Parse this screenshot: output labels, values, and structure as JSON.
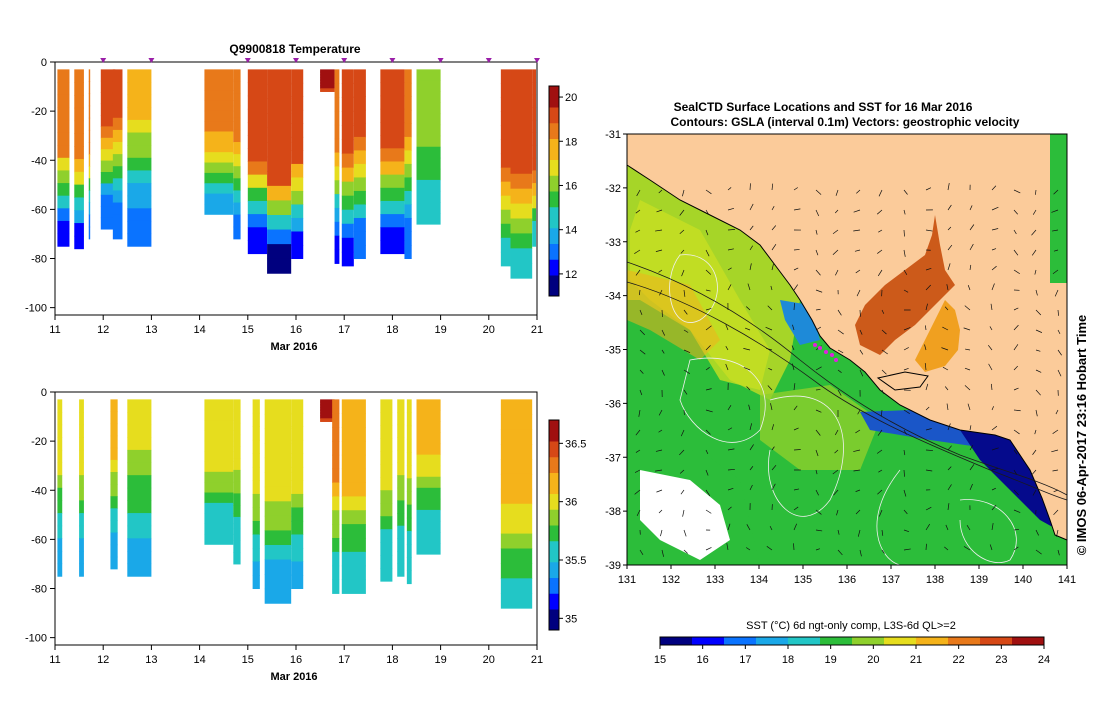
{
  "colors": {
    "land": "#fbcb9a",
    "no_data": "#ffffff",
    "profile_marker": "#9a1fa8",
    "contour": "#f0f0f0",
    "coastline": "#000000"
  },
  "chart_data": [
    {
      "type": "heatmap",
      "title": "Q9900818  Temperature",
      "xlabel": "Mar 2016",
      "x_ticks": [
        11,
        12,
        13,
        14,
        15,
        16,
        17,
        18,
        19,
        20,
        21
      ],
      "xlim": [
        11,
        21
      ],
      "y_ticks": [
        0,
        -20,
        -40,
        -60,
        -80,
        -100
      ],
      "ylim": [
        -103,
        0
      ],
      "colorbar": {
        "ticks": [
          12,
          14,
          16,
          18,
          20
        ],
        "range": [
          11,
          20.5
        ]
      },
      "profile_times": [
        12,
        13,
        15,
        16,
        17,
        18,
        19,
        20,
        21
      ],
      "profiles": [
        {
          "t0": 11.05,
          "t1": 11.3,
          "bottom": -75,
          "surface": 18.5,
          "mix": -35,
          "deep": 12.5
        },
        {
          "t0": 11.4,
          "t1": 11.6,
          "bottom": -76,
          "surface": 18.5,
          "mix": -38,
          "deep": 12.5
        },
        {
          "t0": 11.7,
          "t1": 11.73,
          "bottom": -72,
          "surface": 18.5,
          "mix": -35,
          "deep": 13
        },
        {
          "t0": 11.95,
          "t1": 12.25,
          "bottom": -68,
          "surface": 19,
          "mix": -25,
          "deep": 13
        },
        {
          "t0": 12.2,
          "t1": 12.4,
          "bottom": -72,
          "surface": 19,
          "mix": -22,
          "deep": 13
        },
        {
          "t0": 12.5,
          "t1": 13.0,
          "bottom": -75,
          "surface": 17.5,
          "mix": -20,
          "deep": 13
        },
        {
          "t0": 14.1,
          "t1": 14.7,
          "bottom": -62,
          "surface": 18.5,
          "mix": -28,
          "deep": 14
        },
        {
          "t0": 14.7,
          "t1": 14.85,
          "bottom": -72,
          "surface": 18.5,
          "mix": -30,
          "deep": 13
        },
        {
          "t0": 15.0,
          "t1": 15.4,
          "bottom": -78,
          "surface": 19,
          "mix": -40,
          "deep": 12
        },
        {
          "t0": 15.4,
          "t1": 15.9,
          "bottom": -86,
          "surface": 19,
          "mix": -50,
          "deep": 11.5
        },
        {
          "t0": 15.9,
          "t1": 16.15,
          "bottom": -80,
          "surface": 19,
          "mix": -40,
          "deep": 12.5
        },
        {
          "t0": 16.5,
          "t1": 16.8,
          "bottom": -12,
          "surface": 19.8,
          "mix": -10,
          "deep": 19.5
        },
        {
          "t0": 16.8,
          "t1": 16.9,
          "bottom": -82,
          "surface": 18.5,
          "mix": -35,
          "deep": 12.5
        },
        {
          "t0": 16.95,
          "t1": 17.2,
          "bottom": -83,
          "surface": 19,
          "mix": -38,
          "deep": 12.5
        },
        {
          "t0": 17.2,
          "t1": 17.45,
          "bottom": -80,
          "surface": 19,
          "mix": -30,
          "deep": 13
        },
        {
          "t0": 17.75,
          "t1": 18.25,
          "bottom": -78,
          "surface": 19,
          "mix": -35,
          "deep": 12.5
        },
        {
          "t0": 18.25,
          "t1": 18.4,
          "bottom": -80,
          "surface": 18.5,
          "mix": -30,
          "deep": 13
        },
        {
          "t0": 18.5,
          "t1": 19.0,
          "bottom": -66,
          "surface": 16.5,
          "mix": -22,
          "deep": 14.5
        },
        {
          "t0": 20.25,
          "t1": 20.45,
          "bottom": -83,
          "surface": 19,
          "mix": -40,
          "deep": 14.5
        },
        {
          "t0": 20.45,
          "t1": 20.9,
          "bottom": -88,
          "surface": 19,
          "mix": -45,
          "deep": 14.5
        },
        {
          "t0": 20.9,
          "t1": 20.98,
          "bottom": -75,
          "surface": 19,
          "mix": -45,
          "deep": 14.5
        }
      ]
    },
    {
      "type": "heatmap",
      "title": "",
      "xlabel": "Mar 2016",
      "x_ticks": [
        11,
        12,
        13,
        14,
        15,
        16,
        17,
        18,
        19,
        20,
        21
      ],
      "xlim": [
        11,
        21
      ],
      "y_ticks": [
        0,
        -20,
        -40,
        -60,
        -80,
        -100
      ],
      "ylim": [
        -103,
        0
      ],
      "colorbar": {
        "ticks": [
          35,
          35.5,
          36,
          36.5
        ],
        "range": [
          34.9,
          36.7
        ]
      },
      "profiles": [
        {
          "t0": 11.05,
          "t1": 11.15,
          "bottom": -75,
          "surface": 36.0,
          "mix": -30,
          "deep": 35.4
        },
        {
          "t0": 11.5,
          "t1": 11.6,
          "bottom": -75,
          "surface": 36.0,
          "mix": -32,
          "deep": 35.4
        },
        {
          "t0": 12.15,
          "t1": 12.3,
          "bottom": -72,
          "surface": 36.2,
          "mix": -20,
          "deep": 35.45
        },
        {
          "t0": 12.5,
          "t1": 13.0,
          "bottom": -75,
          "surface": 36.05,
          "mix": -18,
          "deep": 35.45
        },
        {
          "t0": 14.1,
          "t1": 14.7,
          "bottom": -62,
          "surface": 36.05,
          "mix": -28,
          "deep": 35.5
        },
        {
          "t0": 14.7,
          "t1": 14.85,
          "bottom": -70,
          "surface": 36.0,
          "mix": -30,
          "deep": 35.5
        },
        {
          "t0": 15.1,
          "t1": 15.25,
          "bottom": -80,
          "surface": 36.0,
          "mix": -40,
          "deep": 35.45
        },
        {
          "t0": 15.35,
          "t1": 15.9,
          "bottom": -86,
          "surface": 35.95,
          "mix": -45,
          "deep": 35.4
        },
        {
          "t0": 15.9,
          "t1": 16.15,
          "bottom": -80,
          "surface": 35.95,
          "mix": -40,
          "deep": 35.45
        },
        {
          "t0": 16.5,
          "t1": 16.8,
          "bottom": -12,
          "surface": 36.6,
          "mix": -10,
          "deep": 36.5
        },
        {
          "t0": 16.75,
          "t1": 16.9,
          "bottom": -82,
          "surface": 36.4,
          "mix": -30,
          "deep": 35.5
        },
        {
          "t0": 16.95,
          "t1": 17.45,
          "bottom": -82,
          "surface": 36.2,
          "mix": -35,
          "deep": 35.5
        },
        {
          "t0": 17.75,
          "t1": 18.0,
          "bottom": -77,
          "surface": 36.05,
          "mix": -35,
          "deep": 35.5
        },
        {
          "t0": 18.1,
          "t1": 18.25,
          "bottom": -75,
          "surface": 36.0,
          "mix": -30,
          "deep": 35.5
        },
        {
          "t0": 18.3,
          "t1": 18.4,
          "bottom": -78,
          "surface": 36.05,
          "mix": -30,
          "deep": 35.5
        },
        {
          "t0": 18.5,
          "t1": 19.0,
          "bottom": -66,
          "surface": 36.1,
          "mix": -25,
          "deep": 35.5
        },
        {
          "t0": 20.25,
          "t1": 20.9,
          "bottom": -88,
          "surface": 36.15,
          "mix": -45,
          "deep": 35.6
        }
      ]
    },
    {
      "type": "heatmap",
      "title": "SealCTD Surface Locations and SST for 16 Mar 2016",
      "subtitle": "Contours: GSLA (interval 0.1m)  Vectors: geostrophic velocity",
      "x_ticks": [
        131,
        132,
        133,
        134,
        135,
        136,
        137,
        138,
        139,
        140,
        141
      ],
      "xlim": [
        131,
        141
      ],
      "y_ticks": [
        -31,
        -32,
        -33,
        -34,
        -35,
        -36,
        -37,
        -38,
        -39
      ],
      "ylim": [
        -39,
        -31
      ],
      "colorbar": {
        "label": "SST (°C) 6d ngt-only comp, L3S-6d QL>=2",
        "ticks": [
          15,
          16,
          17,
          18,
          19,
          20,
          21,
          22,
          23,
          24
        ],
        "range": [
          15,
          24
        ]
      },
      "side_caption": "© IMOS 06-Apr-2017 23:16 Hobart Time"
    }
  ]
}
